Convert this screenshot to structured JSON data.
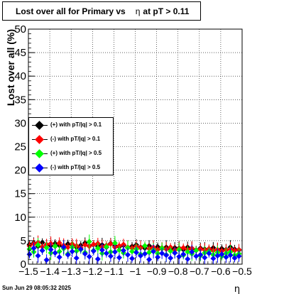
{
  "title": {
    "text": "Lost over all for Primary vs",
    "eta_symbol": "η",
    "suffix": "at pT > 0.11"
  },
  "datestamp": "Sun Jun 29 08:05:32 2025",
  "xlabel": "η",
  "ylabel": "Lost over all (%)",
  "legend": [
    {
      "label": "(+) with pT/|q| > 0.1",
      "color": "#000000"
    },
    {
      "label": "(-) with pT/|q| > 0.1",
      "color": "#ff0000"
    },
    {
      "label": "(+) with pT/|q| > 0.5",
      "color": "#00ff00"
    },
    {
      "label": "(-) with pT/|q| > 0.5",
      "color": "#0000ff"
    }
  ],
  "chart_data": {
    "type": "scatter",
    "xlim": [
      -1.5,
      -0.5
    ],
    "ylim": [
      0,
      50
    ],
    "x_major_ticks": [
      -1.5,
      -1.4,
      -1.3,
      -1.2,
      -1.1,
      -1.0,
      -0.9,
      -0.8,
      -0.7,
      -0.6,
      -0.5
    ],
    "x_tick_labels": [
      "−1.5",
      "−1.4",
      "−1.3",
      "−1.2",
      "−1.1",
      "−1",
      "−0.9",
      "−0.8",
      "−0.7",
      "−0.6",
      "−0.5"
    ],
    "y_major_ticks": [
      0,
      5,
      10,
      15,
      20,
      25,
      30,
      35,
      40,
      45,
      50
    ],
    "y_tick_labels": [
      "0",
      "5",
      "10",
      "15",
      "20",
      "25",
      "30",
      "35",
      "40",
      "45",
      "50"
    ],
    "grid": true,
    "legend_position": "left",
    "series": [
      {
        "name": "(+) with pT/|q| > 0.1",
        "color": "#000000",
        "x": [
          -1.495,
          -1.475,
          -1.455,
          -1.435,
          -1.415,
          -1.395,
          -1.375,
          -1.355,
          -1.335,
          -1.315,
          -1.295,
          -1.275,
          -1.255,
          -1.235,
          -1.215,
          -1.195,
          -1.175,
          -1.155,
          -1.135,
          -1.115,
          -1.095,
          -1.075,
          -1.055,
          -1.035,
          -1.015,
          -0.995,
          -0.975,
          -0.955,
          -0.935,
          -0.915,
          -0.895,
          -0.875,
          -0.855,
          -0.835,
          -0.815,
          -0.795,
          -0.775,
          -0.755,
          -0.735,
          -0.715,
          -0.695,
          -0.675,
          -0.655,
          -0.635,
          -0.615,
          -0.595,
          -0.575,
          -0.555,
          -0.535,
          -0.515
        ],
        "y": [
          4.2,
          4.5,
          3.8,
          4.6,
          4.1,
          3.9,
          4.4,
          4.0,
          3.7,
          4.3,
          4.1,
          3.6,
          4.0,
          4.5,
          3.9,
          4.2,
          3.8,
          4.1,
          3.6,
          4.4,
          3.9,
          3.7,
          4.0,
          3.5,
          3.8,
          4.1,
          3.6,
          3.4,
          3.9,
          3.5,
          3.7,
          3.3,
          3.6,
          3.2,
          3.5,
          3.4,
          3.1,
          3.6,
          3.3,
          3.0,
          3.4,
          3.2,
          3.1,
          3.5,
          3.0,
          3.3,
          3.1,
          3.6,
          3.2,
          3.0
        ]
      },
      {
        "name": "(-) with pT/|q| > 0.1",
        "color": "#ff0000",
        "x": [
          -1.495,
          -1.475,
          -1.455,
          -1.435,
          -1.415,
          -1.395,
          -1.375,
          -1.355,
          -1.335,
          -1.315,
          -1.295,
          -1.275,
          -1.255,
          -1.235,
          -1.215,
          -1.195,
          -1.175,
          -1.155,
          -1.135,
          -1.115,
          -1.095,
          -1.075,
          -1.055,
          -1.035,
          -1.015,
          -0.995,
          -0.975,
          -0.955,
          -0.935,
          -0.915,
          -0.895,
          -0.875,
          -0.855,
          -0.835,
          -0.815,
          -0.795,
          -0.775,
          -0.755,
          -0.735,
          -0.715,
          -0.695,
          -0.675,
          -0.655,
          -0.635,
          -0.615,
          -0.595,
          -0.575,
          -0.555,
          -0.535,
          -0.515
        ],
        "y": [
          3.9,
          4.3,
          4.6,
          3.7,
          4.2,
          4.4,
          3.8,
          4.5,
          4.0,
          3.6,
          4.3,
          3.9,
          3.5,
          4.1,
          3.8,
          4.2,
          4.4,
          3.7,
          4.0,
          4.3,
          3.6,
          3.9,
          4.2,
          3.6,
          3.4,
          3.8,
          3.5,
          3.9,
          3.3,
          3.6,
          3.1,
          3.5,
          3.2,
          3.6,
          3.0,
          3.3,
          3.5,
          3.1,
          3.4,
          2.9,
          3.2,
          3.0,
          3.3,
          2.9,
          3.1,
          2.8,
          3.0,
          3.2,
          2.9,
          3.1
        ]
      },
      {
        "name": "(+) with pT/|q| > 0.5",
        "color": "#00ff00",
        "x": [
          -1.495,
          -1.475,
          -1.455,
          -1.435,
          -1.415,
          -1.395,
          -1.375,
          -1.355,
          -1.335,
          -1.315,
          -1.295,
          -1.275,
          -1.255,
          -1.235,
          -1.215,
          -1.195,
          -1.175,
          -1.155,
          -1.135,
          -1.115,
          -1.095,
          -1.075,
          -1.055,
          -1.035,
          -1.015,
          -0.995,
          -0.975,
          -0.955,
          -0.935,
          -0.915,
          -0.895,
          -0.875,
          -0.855,
          -0.835,
          -0.815,
          -0.795,
          -0.775,
          -0.755,
          -0.735,
          -0.715,
          -0.695,
          -0.675,
          -0.655,
          -0.635,
          -0.615,
          -0.595,
          -0.575,
          -0.555,
          -0.535,
          -0.515
        ],
        "y": [
          3.2,
          2.6,
          4.1,
          2.9,
          3.5,
          2.4,
          3.8,
          2.7,
          3.3,
          2.2,
          3.6,
          2.8,
          3.1,
          2.5,
          4.8,
          2.9,
          3.4,
          2.3,
          3.7,
          2.6,
          4.5,
          3.0,
          2.4,
          3.5,
          2.7,
          3.2,
          2.1,
          3.9,
          2.5,
          3.0,
          2.3,
          3.4,
          2.0,
          2.8,
          2.4,
          3.1,
          1.9,
          2.6,
          2.2,
          2.9,
          1.8,
          2.4,
          2.7,
          2.0,
          2.5,
          1.7,
          2.3,
          2.6,
          1.9,
          2.2
        ]
      },
      {
        "name": "(-) with pT/|q| > 0.5",
        "color": "#0000ff",
        "x": [
          -1.495,
          -1.475,
          -1.455,
          -1.435,
          -1.415,
          -1.395,
          -1.375,
          -1.355,
          -1.335,
          -1.315,
          -1.295,
          -1.275,
          -1.255,
          -1.235,
          -1.215,
          -1.195,
          -1.175,
          -1.155,
          -1.135,
          -1.115,
          -1.095,
          -1.075,
          -1.055,
          -1.035,
          -1.015,
          -0.995,
          -0.975,
          -0.955,
          -0.935,
          -0.915,
          -0.895,
          -0.875,
          -0.855,
          -0.835,
          -0.815,
          -0.795,
          -0.775,
          -0.755,
          -0.735,
          -0.715,
          -0.695,
          -0.675,
          -0.655,
          -0.635,
          -0.615,
          -0.595,
          -0.575,
          -0.555,
          -0.535,
          -0.515
        ],
        "y": [
          2.1,
          3.4,
          1.8,
          2.9,
          0.9,
          3.1,
          2.4,
          1.5,
          3.6,
          2.0,
          2.7,
          1.3,
          3.2,
          2.2,
          1.6,
          2.8,
          1.1,
          3.0,
          2.3,
          1.7,
          2.6,
          1.4,
          2.9,
          2.0,
          1.2,
          2.5,
          1.8,
          2.2,
          1.0,
          2.7,
          1.5,
          2.3,
          1.9,
          1.3,
          2.4,
          1.6,
          2.1,
          1.1,
          2.6,
          1.7,
          2.0,
          1.4,
          2.3,
          1.2,
          1.8,
          2.1,
          1.5,
          1.9,
          1.3,
          1.7
        ]
      }
    ]
  }
}
